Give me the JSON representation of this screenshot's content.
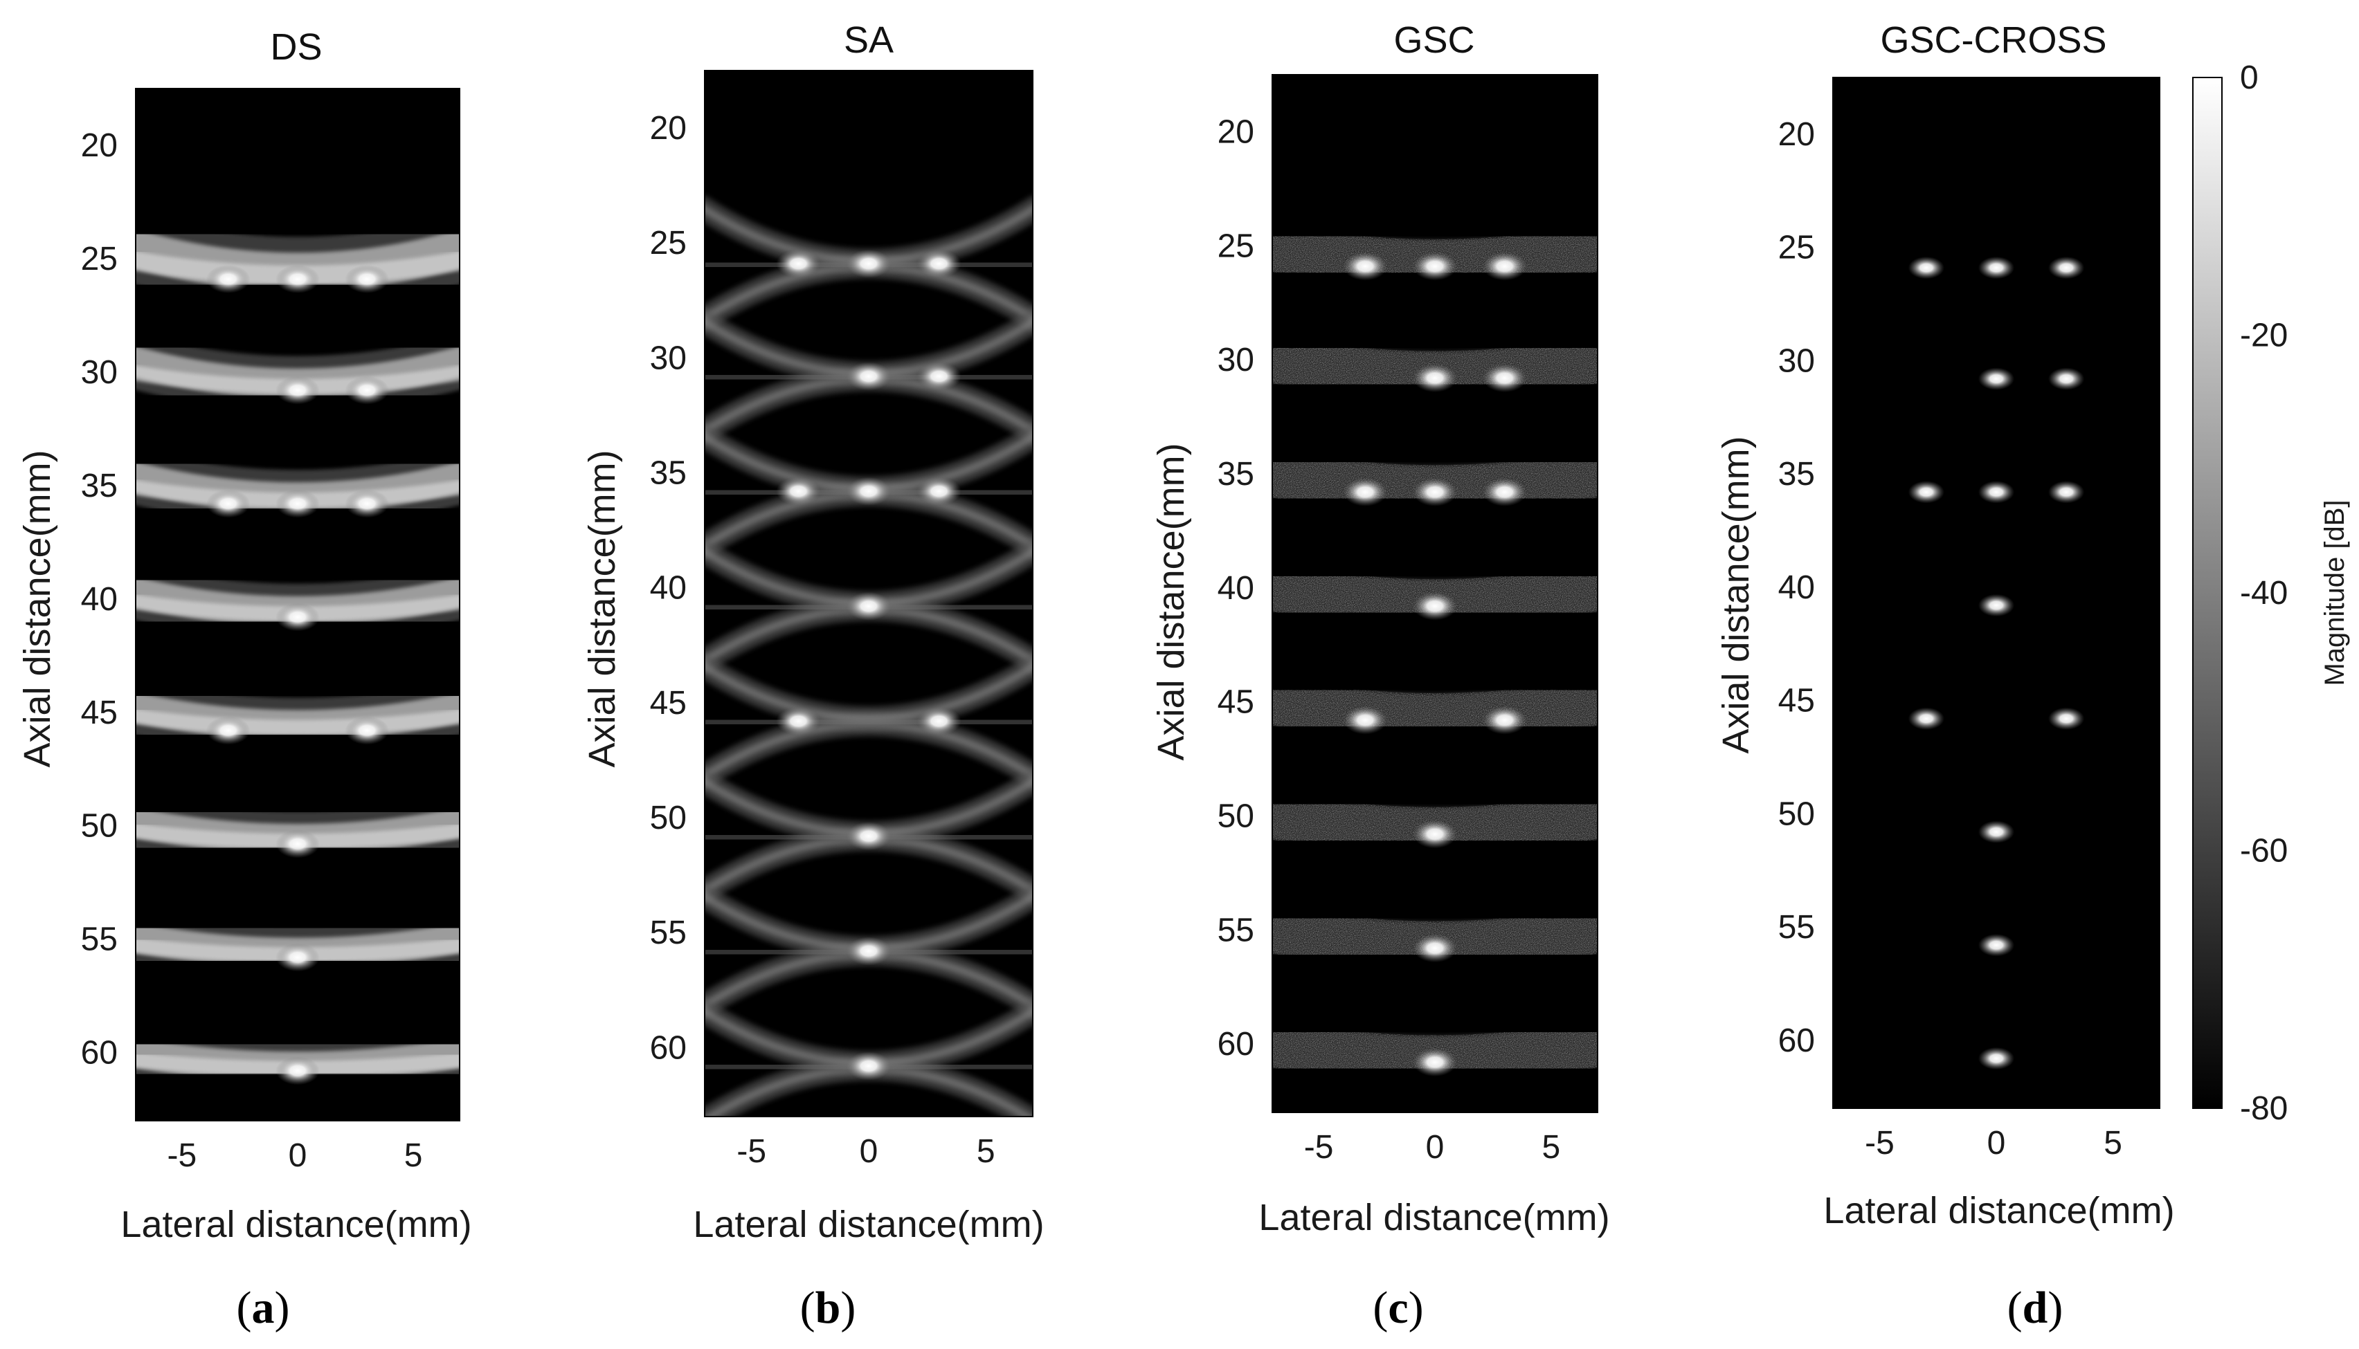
{
  "chart_data": [
    {
      "type": "heatmap",
      "panel": "(a)",
      "title": "DS",
      "xlabel": "Lateral distance(mm)",
      "ylabel": "Axial distance(mm)",
      "xlim": [
        -7,
        7
      ],
      "ylim": [
        17.5,
        63
      ],
      "xticks": [
        -5,
        0,
        5
      ],
      "yticks": [
        20,
        25,
        30,
        35,
        40,
        45,
        50,
        55,
        60
      ],
      "points": [
        [
          -3,
          25.9
        ],
        [
          0,
          25.9
        ],
        [
          3,
          25.9
        ],
        [
          0,
          30.8
        ],
        [
          3,
          30.8
        ],
        [
          -3,
          35.8
        ],
        [
          0,
          35.8
        ],
        [
          3,
          35.8
        ],
        [
          0,
          40.8
        ],
        [
          -3,
          45.8
        ],
        [
          3,
          45.8
        ],
        [
          0,
          50.8
        ],
        [
          0,
          55.8
        ],
        [
          0,
          60.8
        ]
      ],
      "arcs": [
        {
          "y": 25.9,
          "w": 1.0
        },
        {
          "y": 30.8,
          "w": 0.9
        },
        {
          "y": 35.8,
          "w": 0.95
        },
        {
          "y": 40.8,
          "w": 0.8
        },
        {
          "y": 45.8,
          "w": 0.9
        },
        {
          "y": 50.8,
          "w": 0.8
        },
        {
          "y": 55.8,
          "w": 0.8
        },
        {
          "y": 60.8,
          "w": 0.8
        }
      ]
    },
    {
      "type": "heatmap",
      "panel": "(b)",
      "title": "SA",
      "xlabel": "Lateral distance(mm)",
      "ylabel": "Axial distance(mm)",
      "xlim": [
        -7,
        7
      ],
      "ylim": [
        17.5,
        63
      ],
      "xticks": [
        -5,
        0,
        5
      ],
      "yticks": [
        20,
        25,
        30,
        35,
        40,
        45,
        50,
        55,
        60
      ],
      "points": [
        [
          -3,
          25.9
        ],
        [
          0,
          25.9
        ],
        [
          3,
          25.9
        ],
        [
          0,
          30.8
        ],
        [
          3,
          30.8
        ],
        [
          -3,
          35.8
        ],
        [
          0,
          35.8
        ],
        [
          3,
          35.8
        ],
        [
          0,
          40.8
        ],
        [
          -3,
          45.8
        ],
        [
          3,
          45.8
        ],
        [
          0,
          50.8
        ],
        [
          0,
          55.8
        ],
        [
          0,
          60.8
        ]
      ]
    },
    {
      "type": "heatmap",
      "panel": "(c)",
      "title": "GSC",
      "xlabel": "Lateral distance(mm)",
      "ylabel": "Axial distance(mm)",
      "xlim": [
        -7,
        7
      ],
      "ylim": [
        17.5,
        63
      ],
      "xticks": [
        -5,
        0,
        5
      ],
      "yticks": [
        20,
        25,
        30,
        35,
        40,
        45,
        50,
        55,
        60
      ],
      "points": [
        [
          -3,
          25.9
        ],
        [
          0,
          25.9
        ],
        [
          3,
          25.9
        ],
        [
          0,
          30.8
        ],
        [
          3,
          30.8
        ],
        [
          -3,
          35.8
        ],
        [
          0,
          35.8
        ],
        [
          3,
          35.8
        ],
        [
          0,
          40.8
        ],
        [
          -3,
          45.8
        ],
        [
          3,
          45.8
        ],
        [
          0,
          50.8
        ],
        [
          0,
          55.8
        ],
        [
          0,
          60.8
        ]
      ]
    },
    {
      "type": "heatmap",
      "panel": "(d)",
      "title": "GSC-CROSS",
      "xlabel": "Lateral distance(mm)",
      "ylabel": "Axial distance(mm)",
      "xlim": [
        -7,
        7
      ],
      "ylim": [
        17.5,
        63
      ],
      "xticks": [
        -5,
        0,
        5
      ],
      "yticks": [
        20,
        25,
        30,
        35,
        40,
        45,
        50,
        55,
        60
      ],
      "points": [
        [
          -3,
          25.9
        ],
        [
          0,
          25.9
        ],
        [
          3,
          25.9
        ],
        [
          0,
          30.8
        ],
        [
          3,
          30.8
        ],
        [
          -3,
          35.8
        ],
        [
          0,
          35.8
        ],
        [
          3,
          35.8
        ],
        [
          0,
          40.8
        ],
        [
          -3,
          45.8
        ],
        [
          3,
          45.8
        ],
        [
          0,
          50.8
        ],
        [
          0,
          55.8
        ],
        [
          0,
          60.8
        ]
      ],
      "colorbar": {
        "label": "Magnitude [dB]",
        "range": [
          -80,
          0
        ],
        "ticks": [
          0,
          -20,
          -40,
          -60,
          -80
        ],
        "colormap": [
          "#000000",
          "#ffffff"
        ]
      }
    }
  ]
}
